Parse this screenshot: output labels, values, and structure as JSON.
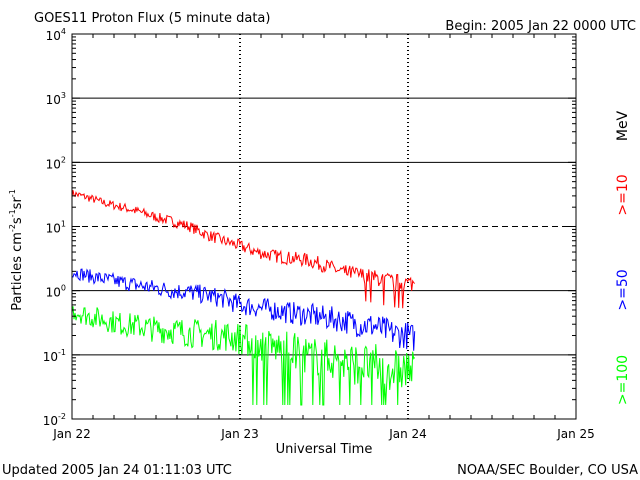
{
  "header": {
    "title": "GOES11 Proton Flux (5 minute data)",
    "begin": "Begin: 2005 Jan 22 0000 UTC"
  },
  "footer": {
    "updated": "Updated 2005 Jan 24 01:11:03 UTC",
    "credit": "NOAA/SEC Boulder, CO USA"
  },
  "chart_data": {
    "type": "line",
    "title": "GOES11 Proton Flux (5 minute data)",
    "xlabel": "Universal Time",
    "ylabel": "Particles cm-2s-1sr-1",
    "yscale": "log",
    "ylim": [
      0.01,
      10000
    ],
    "xlim": [
      0,
      3
    ],
    "x_ticks": [
      {
        "pos": 0,
        "label": "Jan 22"
      },
      {
        "pos": 1,
        "label": "Jan 23"
      },
      {
        "pos": 2,
        "label": "Jan 24"
      },
      {
        "pos": 3,
        "label": "Jan 25"
      }
    ],
    "y_ticks": [
      {
        "value": 0.01,
        "mantissa": "10",
        "exp": "-2"
      },
      {
        "value": 0.1,
        "mantissa": "10",
        "exp": "-1"
      },
      {
        "value": 1,
        "mantissa": "10",
        "exp": "0"
      },
      {
        "value": 10,
        "mantissa": "10",
        "exp": "1"
      },
      {
        "value": 100,
        "mantissa": "10",
        "exp": "2"
      },
      {
        "value": 1000,
        "mantissa": "10",
        "exp": "3"
      },
      {
        "value": 10000,
        "mantissa": "10",
        "exp": "4"
      }
    ],
    "unit_label": "MeV",
    "series": [
      {
        "name": ">=10",
        "color": "#ff0000",
        "x": [
          0,
          0.1,
          0.2,
          0.3,
          0.4,
          0.5,
          0.6,
          0.7,
          0.8,
          0.9,
          1.0,
          1.1,
          1.2,
          1.3,
          1.4,
          1.5,
          1.6,
          1.7,
          1.8,
          1.9,
          2.0,
          2.04
        ],
        "values": [
          33,
          28,
          23,
          20,
          17,
          14,
          12,
          10,
          7.5,
          6,
          5,
          4,
          3.5,
          3.2,
          3,
          2.5,
          2,
          1.8,
          1.6,
          1.4,
          1.3,
          1.3
        ]
      },
      {
        "name": ">=50",
        "color": "#0000ff",
        "x": [
          0,
          0.1,
          0.2,
          0.3,
          0.4,
          0.5,
          0.6,
          0.7,
          0.8,
          0.9,
          1.0,
          1.1,
          1.2,
          1.3,
          1.4,
          1.5,
          1.6,
          1.7,
          1.8,
          1.9,
          2.0,
          2.04
        ],
        "values": [
          2.0,
          1.7,
          1.5,
          1.35,
          1.2,
          1.1,
          1.0,
          0.95,
          0.85,
          0.75,
          0.6,
          0.55,
          0.5,
          0.45,
          0.42,
          0.38,
          0.35,
          0.3,
          0.28,
          0.22,
          0.2,
          0.18
        ]
      },
      {
        "name": ">=100",
        "color": "#00ff00",
        "x": [
          0,
          0.1,
          0.2,
          0.3,
          0.4,
          0.5,
          0.6,
          0.7,
          0.8,
          0.9,
          1.0,
          1.1,
          1.2,
          1.3,
          1.4,
          1.5,
          1.6,
          1.7,
          1.8,
          1.9,
          2.0,
          2.04
        ],
        "values": [
          0.5,
          0.4,
          0.35,
          0.3,
          0.28,
          0.25,
          0.24,
          0.22,
          0.21,
          0.2,
          0.18,
          0.15,
          0.13,
          0.12,
          0.1,
          0.09,
          0.08,
          0.07,
          0.07,
          0.06,
          0.06,
          0.05
        ]
      }
    ]
  }
}
